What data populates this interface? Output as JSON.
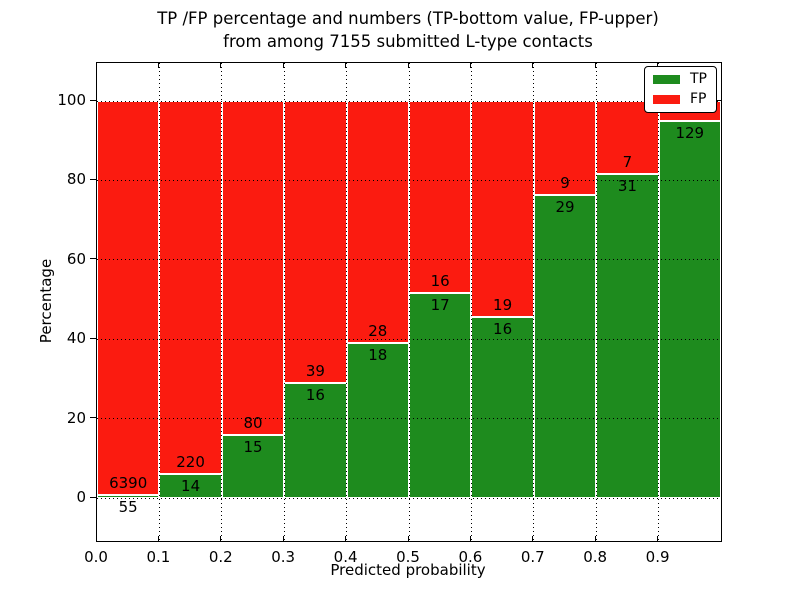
{
  "title": {
    "line1": "TP /FP percentage and numbers (TP-bottom value, FP-upper)",
    "line2": "from among 7155 submitted L-type contacts"
  },
  "axes": {
    "xlabel": "Predicted probability",
    "ylabel": "Percentage",
    "x_tick_labels": [
      "0.0",
      "0.1",
      "0.2",
      "0.3",
      "0.4",
      "0.5",
      "0.6",
      "0.7",
      "0.8",
      "0.9"
    ],
    "y_tick_labels": [
      "0",
      "20",
      "40",
      "60",
      "80",
      "100"
    ],
    "y_tick_values": [
      0,
      20,
      40,
      60,
      80,
      100
    ]
  },
  "legend": {
    "items": [
      {
        "label": "TP",
        "color": "#1e8b1e"
      },
      {
        "label": "FP",
        "color": "#fb1b10"
      }
    ]
  },
  "chart_data": {
    "type": "bar",
    "stacked": true,
    "title": "TP /FP percentage and numbers (TP-bottom value, FP-upper) from among 7155 submitted L-type contacts",
    "xlabel": "Predicted probability",
    "ylabel": "Percentage",
    "xlim": [
      0.0,
      1.0
    ],
    "ylim": [
      -11,
      110
    ],
    "grid": "dotted",
    "legend_position": "upper right",
    "bin_width": 0.1,
    "categories": [
      "0.0-0.1",
      "0.1-0.2",
      "0.2-0.3",
      "0.3-0.4",
      "0.4-0.5",
      "0.5-0.6",
      "0.6-0.7",
      "0.7-0.8",
      "0.8-0.9",
      "0.9-1.0"
    ],
    "series": [
      {
        "name": "TP",
        "color": "#1e8b1e",
        "counts": [
          55,
          14,
          15,
          16,
          18,
          17,
          16,
          29,
          31,
          129
        ],
        "pct": [
          0.85,
          5.98,
          15.79,
          29.09,
          39.13,
          51.52,
          45.71,
          76.32,
          81.58,
          94.85
        ]
      },
      {
        "name": "FP",
        "color": "#fb1b10",
        "counts": [
          6390,
          220,
          80,
          39,
          28,
          16,
          19,
          9,
          7,
          null
        ],
        "pct": [
          99.15,
          94.02,
          84.21,
          70.91,
          60.87,
          48.48,
          54.29,
          23.68,
          18.42,
          5.15
        ],
        "note_last_count_label": "hidden behind legend"
      }
    ]
  }
}
